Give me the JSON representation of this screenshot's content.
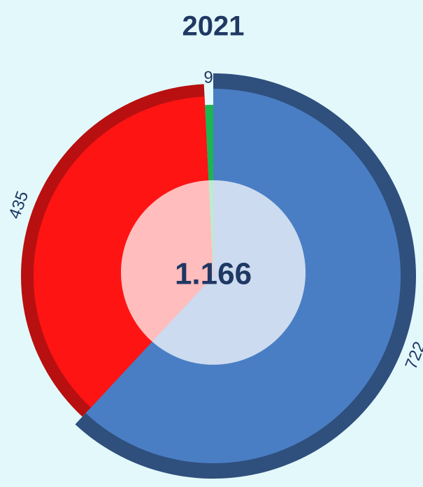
{
  "chart_data": {
    "type": "pie",
    "title": "2021",
    "center_label": "1.166",
    "categories": [
      "722",
      "435",
      "9"
    ],
    "values": [
      722,
      435,
      9
    ],
    "colors": [
      "#4a7ec4",
      "#ff1414",
      "#1db551"
    ],
    "rim_colors": [
      "#2f4f7d",
      "#b81010",
      "#108a3c"
    ]
  }
}
